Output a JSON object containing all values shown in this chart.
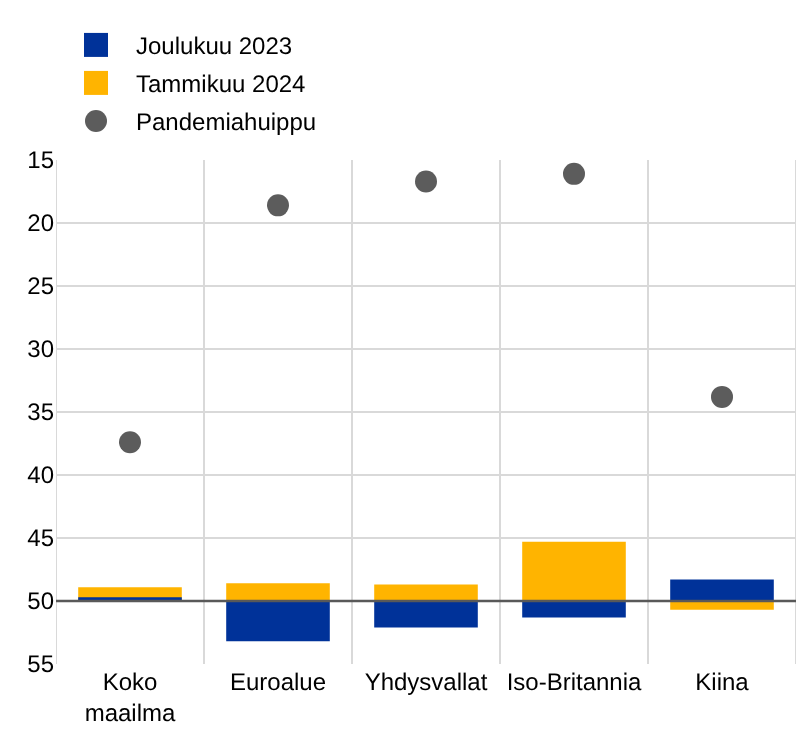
{
  "chart_data": {
    "type": "bar",
    "categories": [
      "Koko maailma",
      "Euroalue",
      "Yhdysvallat",
      "Iso-Britannia",
      "Kiina"
    ],
    "series": [
      {
        "name": "Joulukuu 2023",
        "color": "#003299",
        "base": [
          50,
          50,
          50,
          50,
          50
        ],
        "values": [
          -0.3,
          3.2,
          2.1,
          1.3,
          -1.7
        ]
      },
      {
        "name": "Tammikuu 2024",
        "color": "#ffb400",
        "base": [
          50,
          50,
          50,
          50,
          50
        ],
        "values": [
          -1.1,
          -1.4,
          -1.3,
          -4.7,
          0.7
        ]
      },
      {
        "name": "Pandemiahuippu",
        "color": "#5c5c5c",
        "type": "scatter",
        "marker": "circle",
        "values": [
          37.4,
          18.6,
          16.7,
          16.1,
          33.8
        ]
      }
    ],
    "ylim": [
      55,
      15
    ],
    "yticks": [
      15,
      20,
      25,
      30,
      35,
      40,
      45,
      50,
      55
    ],
    "grid": true,
    "legend": "top left",
    "ref_lines": [
      {
        "axis": "y",
        "value": 50,
        "color": "#595959"
      }
    ]
  }
}
